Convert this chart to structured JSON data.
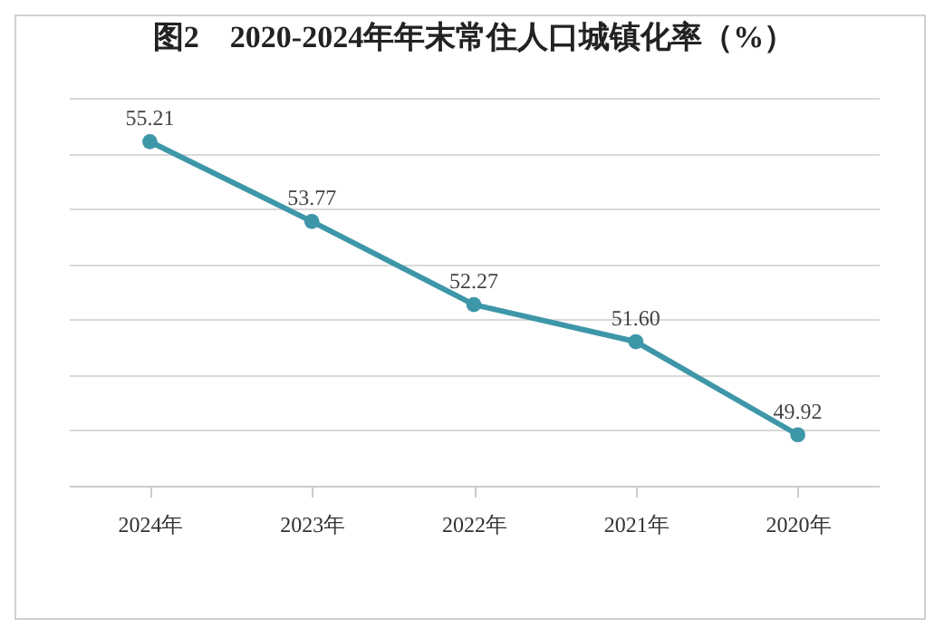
{
  "chart_data": {
    "type": "line",
    "title": "图2　2020-2024年年末常住人口城镇化率（%）",
    "categories": [
      "2024年",
      "2023年",
      "2022年",
      "2021年",
      "2020年"
    ],
    "series": [
      {
        "color": "#3e97a8",
        "values": [
          55.21,
          53.77,
          52.27,
          51.6,
          49.92
        ],
        "value_labels": [
          "55.21",
          "53.77",
          "52.27",
          "51.60",
          "49.92"
        ]
      }
    ],
    "grid": "y",
    "tick_labels": "x",
    "marker": "circle",
    "line_style": "solid"
  }
}
